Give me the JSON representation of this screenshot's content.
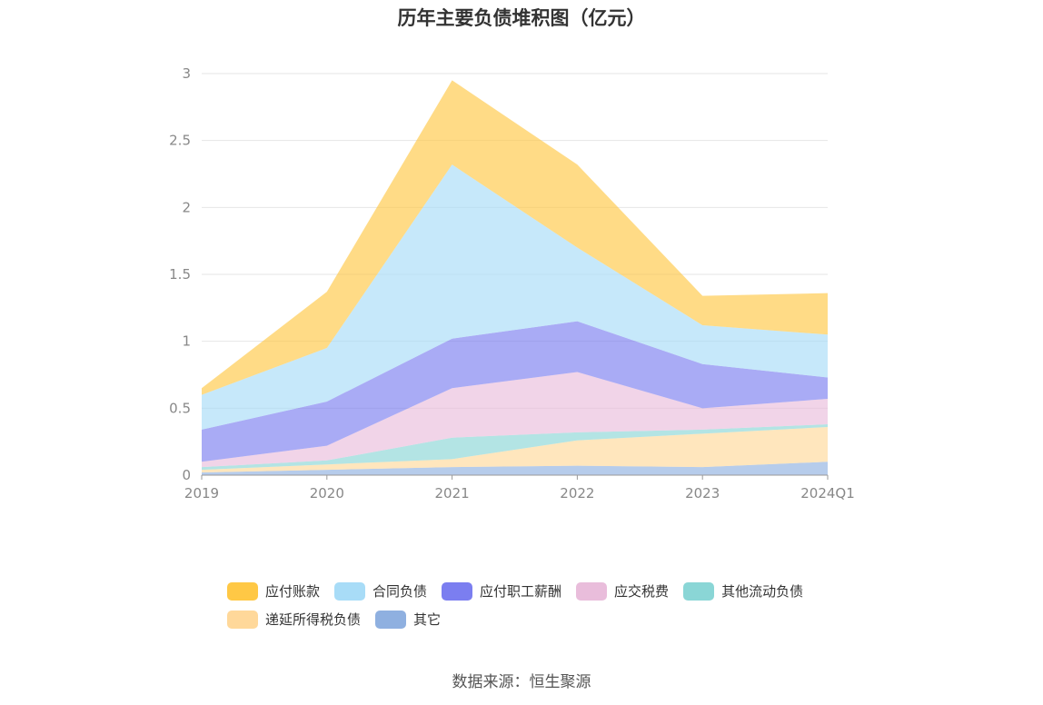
{
  "page": {
    "source": "数据来源：恒生聚源"
  },
  "chart_data": {
    "type": "area",
    "stacked": true,
    "title": "历年主要负债堆积图（亿元）",
    "categories": [
      "2019",
      "2020",
      "2021",
      "2022",
      "2023",
      "2024Q1"
    ],
    "ylim": [
      0,
      3
    ],
    "yticks": [
      "0",
      "0.5",
      "1",
      "1.5",
      "2",
      "2.5",
      "3"
    ],
    "grid": true,
    "legend_position": "bottom",
    "series": [
      {
        "name": "其它",
        "color": "#8fb0e0",
        "values": [
          0.02,
          0.04,
          0.06,
          0.07,
          0.06,
          0.1
        ]
      },
      {
        "name": "递延所得税负债",
        "color": "#ffd89a",
        "values": [
          0.02,
          0.04,
          0.06,
          0.19,
          0.25,
          0.26
        ]
      },
      {
        "name": "其他流动负债",
        "color": "#8ad6d6",
        "values": [
          0.02,
          0.03,
          0.16,
          0.06,
          0.03,
          0.02
        ]
      },
      {
        "name": "应交税费",
        "color": "#e9bddb",
        "values": [
          0.04,
          0.11,
          0.37,
          0.45,
          0.16,
          0.19
        ]
      },
      {
        "name": "应付职工薪酬",
        "color": "#7b7ef0",
        "values": [
          0.24,
          0.33,
          0.37,
          0.38,
          0.33,
          0.16
        ]
      },
      {
        "name": "合同负债",
        "color": "#a8dcf7",
        "values": [
          0.26,
          0.4,
          1.3,
          0.55,
          0.29,
          0.32
        ]
      },
      {
        "name": "应付账款",
        "color": "#ffc845",
        "values": [
          0.05,
          0.42,
          0.63,
          0.62,
          0.22,
          0.31
        ]
      }
    ]
  },
  "legend": {
    "row1": [
      "应付账款",
      "合同负债",
      "应付职工薪酬",
      "应交税费",
      "其他流动负债"
    ],
    "row2": [
      "递延所得税负债",
      "其它"
    ]
  }
}
